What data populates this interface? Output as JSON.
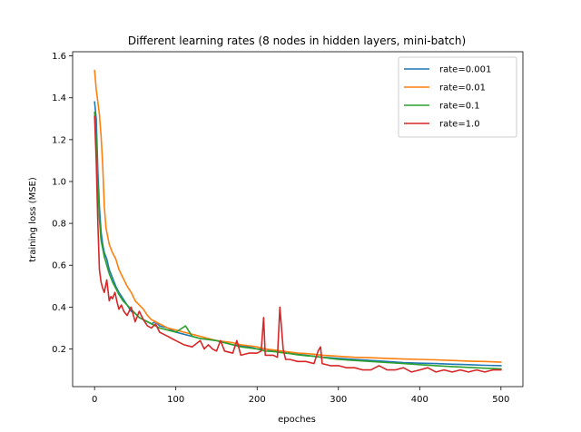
{
  "chart_data": {
    "type": "line",
    "title": "Different learning rates (8 nodes in hidden layers, mini-batch)",
    "xlabel": "epoches",
    "ylabel": "training loss (MSE)",
    "xlim": [
      -27,
      527
    ],
    "ylim": [
      0.02,
      1.62
    ],
    "xticks": [
      0,
      100,
      200,
      300,
      400,
      500
    ],
    "yticks": [
      0.2,
      0.4,
      0.6,
      0.8,
      1.0,
      1.2,
      1.4,
      1.6
    ],
    "ytick_labels": [
      "0.2",
      "0.4",
      "0.6",
      "0.8",
      "1.0",
      "1.2",
      "1.4",
      "1.6"
    ],
    "grid": false,
    "legend": "top-right",
    "series": [
      {
        "name": "rate=0.001",
        "color": "#1f77b4",
        "x": [
          0,
          2,
          4,
          6,
          8,
          10,
          12,
          15,
          18,
          22,
          26,
          30,
          35,
          40,
          45,
          50,
          55,
          60,
          65,
          70,
          75,
          80,
          90,
          100,
          110,
          120,
          130,
          140,
          150,
          160,
          170,
          180,
          190,
          200,
          210,
          220,
          230,
          240,
          250,
          260,
          270,
          280,
          290,
          300,
          320,
          340,
          360,
          380,
          400,
          420,
          440,
          460,
          480,
          500
        ],
        "y": [
          1.38,
          1.3,
          1.05,
          0.88,
          0.76,
          0.7,
          0.66,
          0.63,
          0.58,
          0.54,
          0.5,
          0.47,
          0.44,
          0.41,
          0.38,
          0.37,
          0.35,
          0.34,
          0.33,
          0.32,
          0.33,
          0.31,
          0.3,
          0.28,
          0.27,
          0.26,
          0.25,
          0.245,
          0.24,
          0.23,
          0.22,
          0.215,
          0.21,
          0.2,
          0.2,
          0.19,
          0.185,
          0.18,
          0.175,
          0.17,
          0.165,
          0.16,
          0.158,
          0.155,
          0.15,
          0.145,
          0.14,
          0.135,
          0.132,
          0.13,
          0.127,
          0.125,
          0.122,
          0.12
        ]
      },
      {
        "name": "rate=0.01",
        "color": "#ff7f0e",
        "x": [
          0,
          2,
          4,
          6,
          8,
          10,
          12,
          14,
          16,
          18,
          22,
          26,
          30,
          35,
          40,
          45,
          50,
          55,
          60,
          65,
          70,
          75,
          80,
          90,
          100,
          110,
          120,
          130,
          140,
          150,
          160,
          170,
          180,
          190,
          200,
          210,
          220,
          230,
          240,
          250,
          260,
          270,
          280,
          290,
          300,
          320,
          340,
          360,
          380,
          400,
          420,
          440,
          460,
          480,
          500
        ],
        "y": [
          1.53,
          1.44,
          1.38,
          1.32,
          1.22,
          1.08,
          0.88,
          0.78,
          0.74,
          0.7,
          0.66,
          0.63,
          0.58,
          0.54,
          0.5,
          0.47,
          0.43,
          0.41,
          0.39,
          0.36,
          0.34,
          0.33,
          0.32,
          0.3,
          0.29,
          0.28,
          0.27,
          0.26,
          0.25,
          0.24,
          0.235,
          0.23,
          0.22,
          0.215,
          0.21,
          0.2,
          0.195,
          0.19,
          0.185,
          0.18,
          0.178,
          0.175,
          0.17,
          0.168,
          0.165,
          0.16,
          0.158,
          0.155,
          0.152,
          0.15,
          0.148,
          0.145,
          0.142,
          0.14,
          0.137
        ]
      },
      {
        "name": "rate=0.1",
        "color": "#2ca02c",
        "x": [
          0,
          2,
          4,
          6,
          8,
          10,
          12,
          15,
          18,
          22,
          26,
          30,
          35,
          40,
          45,
          50,
          55,
          60,
          65,
          70,
          75,
          80,
          90,
          100,
          112,
          120,
          130,
          140,
          150,
          160,
          170,
          180,
          190,
          200,
          210,
          220,
          230,
          240,
          250,
          260,
          270,
          280,
          290,
          300,
          320,
          340,
          360,
          380,
          400,
          420,
          440,
          460,
          480,
          500
        ],
        "y": [
          1.33,
          1.2,
          0.98,
          0.82,
          0.72,
          0.68,
          0.64,
          0.6,
          0.56,
          0.52,
          0.49,
          0.46,
          0.43,
          0.41,
          0.39,
          0.37,
          0.35,
          0.34,
          0.33,
          0.32,
          0.31,
          0.3,
          0.29,
          0.28,
          0.31,
          0.26,
          0.25,
          0.245,
          0.24,
          0.23,
          0.22,
          0.21,
          0.205,
          0.2,
          0.19,
          0.188,
          0.182,
          0.178,
          0.172,
          0.168,
          0.165,
          0.16,
          0.155,
          0.15,
          0.145,
          0.14,
          0.135,
          0.13,
          0.125,
          0.12,
          0.116,
          0.112,
          0.108,
          0.105
        ]
      },
      {
        "name": "rate=1.0",
        "color": "#d62728",
        "x": [
          0,
          2,
          4,
          6,
          8,
          10,
          12,
          15,
          18,
          20,
          22,
          25,
          28,
          30,
          33,
          36,
          40,
          45,
          50,
          55,
          60,
          65,
          70,
          75,
          80,
          85,
          90,
          95,
          100,
          110,
          120,
          130,
          135,
          140,
          145,
          150,
          155,
          160,
          170,
          175,
          180,
          190,
          200,
          205,
          208,
          210,
          220,
          225,
          228,
          230,
          232,
          235,
          240,
          250,
          260,
          270,
          275,
          278,
          280,
          290,
          300,
          310,
          320,
          330,
          340,
          350,
          360,
          370,
          380,
          390,
          400,
          410,
          420,
          430,
          440,
          450,
          460,
          470,
          480,
          490,
          500
        ],
        "y": [
          1.31,
          1.1,
          0.8,
          0.58,
          0.52,
          0.49,
          0.47,
          0.53,
          0.43,
          0.45,
          0.44,
          0.47,
          0.42,
          0.39,
          0.41,
          0.38,
          0.36,
          0.4,
          0.33,
          0.38,
          0.34,
          0.31,
          0.3,
          0.32,
          0.28,
          0.27,
          0.26,
          0.25,
          0.24,
          0.22,
          0.21,
          0.24,
          0.2,
          0.22,
          0.2,
          0.19,
          0.24,
          0.19,
          0.18,
          0.24,
          0.17,
          0.18,
          0.18,
          0.19,
          0.35,
          0.17,
          0.17,
          0.16,
          0.4,
          0.3,
          0.2,
          0.15,
          0.15,
          0.14,
          0.14,
          0.13,
          0.19,
          0.21,
          0.13,
          0.12,
          0.12,
          0.11,
          0.11,
          0.1,
          0.1,
          0.12,
          0.1,
          0.1,
          0.11,
          0.09,
          0.1,
          0.11,
          0.09,
          0.1,
          0.09,
          0.1,
          0.09,
          0.1,
          0.09,
          0.1,
          0.1
        ]
      }
    ]
  }
}
